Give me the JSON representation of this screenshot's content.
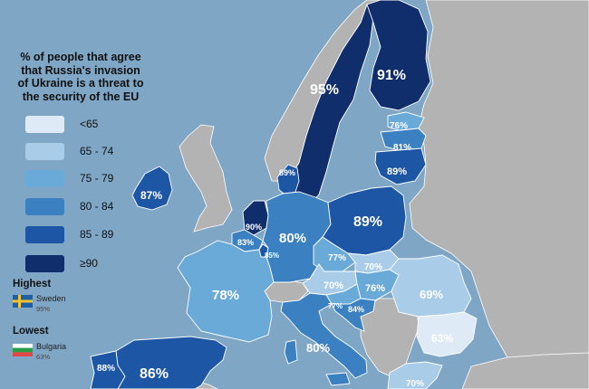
{
  "title_lines": [
    "% of people that agree",
    "that Russia's invasion",
    "of Ukraine is a threat to",
    "the security of the EU"
  ],
  "colors": {
    "sea": "#7fa7c5",
    "non_eu": "#b3b3b3",
    "border": "#ffffff",
    "bin_lt65": "#deeaf6",
    "bin_65_74": "#a9cde8",
    "bin_75_79": "#6aaad8",
    "bin_80_84": "#3b80c1",
    "bin_85_89": "#1d56a4",
    "bin_ge90": "#0f2e6b"
  },
  "legend": [
    {
      "label": "<65",
      "color_key": "bin_lt65"
    },
    {
      "label": "65 - 74",
      "color_key": "bin_65_74"
    },
    {
      "label": "75 - 79",
      "color_key": "bin_75_79"
    },
    {
      "label": "80 - 84",
      "color_key": "bin_80_84"
    },
    {
      "label": "85 - 89",
      "color_key": "bin_85_89"
    },
    {
      "label": "≥90",
      "color_key": "bin_ge90"
    }
  ],
  "highest": {
    "heading": "Highest",
    "country": "Sweden",
    "value": "95%"
  },
  "lowest": {
    "heading": "Lowest",
    "country": "Bulgaria",
    "value": "63%"
  },
  "countries": [
    {
      "id": "sweden",
      "value": "95%"
    },
    {
      "id": "finland",
      "value": "91%"
    },
    {
      "id": "estonia",
      "value": "76%"
    },
    {
      "id": "latvia",
      "value": "81%"
    },
    {
      "id": "lithuania",
      "value": "89%"
    },
    {
      "id": "denmark",
      "value": "89%"
    },
    {
      "id": "ireland",
      "value": "87%"
    },
    {
      "id": "netherlands",
      "value": "90%"
    },
    {
      "id": "belgium",
      "value": "83%"
    },
    {
      "id": "luxembourg",
      "value": "85%"
    },
    {
      "id": "germany",
      "value": "80%"
    },
    {
      "id": "poland",
      "value": "89%"
    },
    {
      "id": "czechia",
      "value": "77%"
    },
    {
      "id": "slovakia",
      "value": "70%"
    },
    {
      "id": "austria",
      "value": "70%"
    },
    {
      "id": "hungary",
      "value": "76%"
    },
    {
      "id": "slovenia",
      "value": "77%"
    },
    {
      "id": "croatia",
      "value": "84%"
    },
    {
      "id": "romania",
      "value": "69%"
    },
    {
      "id": "bulgaria",
      "value": "63%"
    },
    {
      "id": "france",
      "value": "78%"
    },
    {
      "id": "italy",
      "value": "80%"
    },
    {
      "id": "spain",
      "value": "86%"
    },
    {
      "id": "portugal",
      "value": "88%"
    },
    {
      "id": "greece",
      "value": "70%"
    }
  ]
}
